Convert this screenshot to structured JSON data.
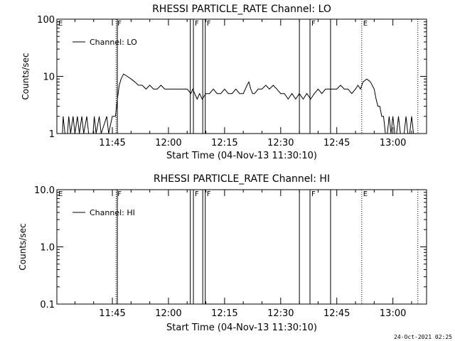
{
  "footer": {
    "timestamp": "24-Oct-2021 02:25"
  },
  "chart_data": [
    {
      "type": "line",
      "title": "RHESSI PARTICLE_RATE Channel: LO",
      "xlabel": "Start Time (04-Nov-13 11:30:10)",
      "ylabel": "Counts/sec",
      "yscale": "log",
      "ylim": [
        1,
        100
      ],
      "ytick_labels": [
        "1",
        "10",
        "100"
      ],
      "xlim": [
        "11:30:10",
        "13:09:00"
      ],
      "xtick_labels": [
        "11:45",
        "12:00",
        "12:15",
        "12:30",
        "12:45",
        "13:00"
      ],
      "legend": {
        "entries": [
          "Channel: LO"
        ],
        "location": "upper-left"
      },
      "markers": [
        {
          "label": "E",
          "time": "11:30:10",
          "style": "dotted"
        },
        {
          "label": "F",
          "time": "11:46:00",
          "style": "dotted"
        },
        {
          "label": "",
          "time": "11:46:20",
          "style": "solid"
        },
        {
          "label": "",
          "time": "12:05:50",
          "style": "solid"
        },
        {
          "label": "F",
          "time": "12:06:40",
          "style": "solid"
        },
        {
          "label": "",
          "time": "12:09:10",
          "style": "solid"
        },
        {
          "label": "F",
          "time": "12:09:50",
          "style": "solid"
        },
        {
          "label": "",
          "time": "12:35:00",
          "style": "solid"
        },
        {
          "label": "F",
          "time": "12:37:50",
          "style": "solid"
        },
        {
          "label": "",
          "time": "12:43:20",
          "style": "solid"
        },
        {
          "label": "E",
          "time": "12:51:40",
          "style": "dotted"
        },
        {
          "label": "",
          "time": "13:06:40",
          "style": "dotted"
        }
      ],
      "series": [
        {
          "points": [
            [
              "11:30:30",
              1
            ],
            [
              "11:31:40",
              1
            ],
            [
              "11:31:50",
              2
            ],
            [
              "11:32:20",
              1
            ],
            [
              "11:33:00",
              1
            ],
            [
              "11:33:20",
              2
            ],
            [
              "11:33:50",
              1
            ],
            [
              "11:34:30",
              2
            ],
            [
              "11:35:00",
              1
            ],
            [
              "11:35:40",
              2
            ],
            [
              "11:36:10",
              1
            ],
            [
              "11:36:50",
              2
            ],
            [
              "11:37:20",
              1
            ],
            [
              "11:38:10",
              2
            ],
            [
              "11:38:40",
              1
            ],
            [
              "11:39:50",
              1
            ],
            [
              "11:40:10",
              2
            ],
            [
              "11:40:40",
              1
            ],
            [
              "11:41:30",
              2
            ],
            [
              "11:42:00",
              1
            ],
            [
              "11:43:30",
              2
            ],
            [
              "11:44:00",
              1
            ],
            [
              "11:45:00",
              2
            ],
            [
              "11:45:50",
              2
            ],
            [
              "11:46:20",
              4
            ],
            [
              "11:46:50",
              7
            ],
            [
              "11:47:20",
              9
            ],
            [
              "11:48:00",
              11
            ],
            [
              "11:49:00",
              10
            ],
            [
              "11:50:00",
              9
            ],
            [
              "11:51:00",
              8
            ],
            [
              "11:52:00",
              7
            ],
            [
              "11:53:00",
              7
            ],
            [
              "11:54:00",
              6
            ],
            [
              "11:55:00",
              7
            ],
            [
              "11:56:00",
              6
            ],
            [
              "11:57:00",
              6
            ],
            [
              "11:58:00",
              7
            ],
            [
              "11:59:00",
              6
            ],
            [
              "12:00:00",
              6
            ],
            [
              "12:01:00",
              6
            ],
            [
              "12:02:00",
              6
            ],
            [
              "12:03:00",
              6
            ],
            [
              "12:04:00",
              6
            ],
            [
              "12:05:00",
              6
            ],
            [
              "12:06:00",
              5
            ],
            [
              "12:06:30",
              6
            ],
            [
              "12:07:00",
              5
            ],
            [
              "12:07:40",
              4
            ],
            [
              "12:08:20",
              5
            ],
            [
              "12:09:00",
              4
            ],
            [
              "12:10:00",
              5
            ],
            [
              "12:11:00",
              5
            ],
            [
              "12:12:00",
              6
            ],
            [
              "12:13:00",
              5
            ],
            [
              "12:14:00",
              5
            ],
            [
              "12:15:00",
              6
            ],
            [
              "12:16:00",
              5
            ],
            [
              "12:17:00",
              5
            ],
            [
              "12:18:00",
              6
            ],
            [
              "12:19:00",
              5
            ],
            [
              "12:20:00",
              5
            ],
            [
              "12:21:00",
              7
            ],
            [
              "12:21:30",
              8
            ],
            [
              "12:22:00",
              6
            ],
            [
              "12:22:30",
              5
            ],
            [
              "12:23:00",
              5
            ],
            [
              "12:24:00",
              6
            ],
            [
              "12:25:00",
              6
            ],
            [
              "12:26:00",
              7
            ],
            [
              "12:27:00",
              6
            ],
            [
              "12:28:00",
              7
            ],
            [
              "12:29:00",
              6
            ],
            [
              "12:30:00",
              5
            ],
            [
              "12:31:00",
              5
            ],
            [
              "12:32:00",
              4
            ],
            [
              "12:33:00",
              5
            ],
            [
              "12:34:00",
              4
            ],
            [
              "12:35:00",
              5
            ],
            [
              "12:36:00",
              4
            ],
            [
              "12:37:00",
              5
            ],
            [
              "12:38:00",
              4
            ],
            [
              "12:39:00",
              5
            ],
            [
              "12:40:00",
              6
            ],
            [
              "12:41:00",
              5
            ],
            [
              "12:42:00",
              6
            ],
            [
              "12:43:00",
              6
            ],
            [
              "12:44:00",
              6
            ],
            [
              "12:45:00",
              6
            ],
            [
              "12:46:00",
              7
            ],
            [
              "12:47:00",
              6
            ],
            [
              "12:48:00",
              6
            ],
            [
              "12:49:00",
              5
            ],
            [
              "12:50:00",
              6
            ],
            [
              "12:50:40",
              7
            ],
            [
              "12:51:20",
              6
            ],
            [
              "12:52:00",
              8
            ],
            [
              "12:53:00",
              9
            ],
            [
              "12:54:00",
              8
            ],
            [
              "12:55:00",
              6
            ],
            [
              "12:55:30",
              4
            ],
            [
              "12:56:00",
              3
            ],
            [
              "12:56:30",
              3
            ],
            [
              "12:57:00",
              2
            ],
            [
              "12:57:30",
              2
            ],
            [
              "12:58:00",
              1
            ],
            [
              "12:58:30",
              1
            ],
            [
              "12:59:00",
              2
            ],
            [
              "12:59:30",
              1
            ],
            [
              "13:00:00",
              2
            ],
            [
              "13:00:30",
              1
            ],
            [
              "13:01:00",
              1
            ],
            [
              "13:01:30",
              2
            ],
            [
              "13:02:00",
              1
            ],
            [
              "13:03:00",
              1
            ],
            [
              "13:03:30",
              2
            ],
            [
              "13:04:00",
              1
            ],
            [
              "13:04:30",
              1
            ],
            [
              "13:05:00",
              2
            ],
            [
              "13:05:30",
              1
            ],
            [
              "13:06:00",
              1
            ]
          ]
        }
      ]
    },
    {
      "type": "line",
      "title": "RHESSI PARTICLE_RATE Channel: HI",
      "xlabel": "Start Time (04-Nov-13 11:30:10)",
      "ylabel": "Counts/sec",
      "yscale": "log",
      "ylim": [
        0.1,
        10
      ],
      "ytick_labels": [
        "0.1",
        "1.0",
        "10.0"
      ],
      "xlim": [
        "11:30:10",
        "13:09:00"
      ],
      "xtick_labels": [
        "11:45",
        "12:00",
        "12:15",
        "12:30",
        "12:45",
        "13:00"
      ],
      "legend": {
        "entries": [
          "Channel: HI"
        ],
        "location": "upper-left"
      },
      "markers": [
        {
          "label": "E",
          "time": "11:30:10",
          "style": "dotted"
        },
        {
          "label": "F",
          "time": "11:46:00",
          "style": "dotted"
        },
        {
          "label": "",
          "time": "11:46:20",
          "style": "solid"
        },
        {
          "label": "",
          "time": "12:05:50",
          "style": "solid"
        },
        {
          "label": "F",
          "time": "12:06:40",
          "style": "solid"
        },
        {
          "label": "",
          "time": "12:09:10",
          "style": "solid"
        },
        {
          "label": "F",
          "time": "12:09:50",
          "style": "solid"
        },
        {
          "label": "",
          "time": "12:35:00",
          "style": "solid"
        },
        {
          "label": "F",
          "time": "12:37:50",
          "style": "solid"
        },
        {
          "label": "",
          "time": "12:43:20",
          "style": "solid"
        },
        {
          "label": "E",
          "time": "12:51:40",
          "style": "dotted"
        },
        {
          "label": "",
          "time": "13:06:40",
          "style": "dotted"
        }
      ],
      "series": [
        {
          "points": []
        }
      ]
    }
  ]
}
